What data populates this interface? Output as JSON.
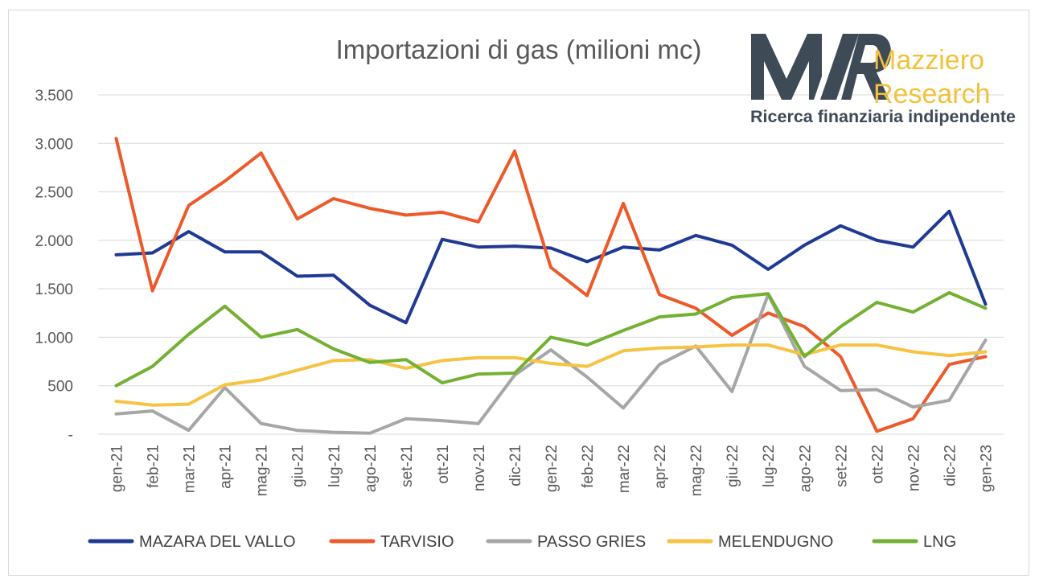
{
  "chart_data": {
    "type": "line",
    "title": "Importazioni di gas (milioni mc)",
    "xlabel": "",
    "ylabel": "",
    "ylim": [
      0,
      3500
    ],
    "y_ticks": [
      {
        "value": 0,
        "label": "-"
      },
      {
        "value": 500,
        "label": "500"
      },
      {
        "value": 1000,
        "label": "1.000"
      },
      {
        "value": 1500,
        "label": "1.500"
      },
      {
        "value": 2000,
        "label": "2.000"
      },
      {
        "value": 2500,
        "label": "2.500"
      },
      {
        "value": 3000,
        "label": "3.000"
      },
      {
        "value": 3500,
        "label": "3.500"
      }
    ],
    "grid": true,
    "legend_position": "bottom",
    "categories": [
      "gen-21",
      "feb-21",
      "mar-21",
      "apr-21",
      "mag-21",
      "giu-21",
      "lug-21",
      "ago-21",
      "set-21",
      "ott-21",
      "nov-21",
      "dic-21",
      "gen-22",
      "feb-22",
      "mar-22",
      "apr-22",
      "mag-22",
      "giu-22",
      "lug-22",
      "ago-22",
      "set-22",
      "ott-22",
      "nov-22",
      "dic-22",
      "gen-23"
    ],
    "series": [
      {
        "name": "MAZARA DEL VALLO",
        "color": "#1f3a93",
        "values": [
          1850,
          1870,
          2090,
          1880,
          1880,
          1630,
          1640,
          1330,
          1150,
          2010,
          1930,
          1940,
          1920,
          1780,
          1930,
          1900,
          2050,
          1950,
          1700,
          1950,
          2150,
          2000,
          1930,
          2300,
          1340
        ]
      },
      {
        "name": "TARVISIO",
        "color": "#ed5a2a",
        "values": [
          3050,
          1480,
          2360,
          2610,
          2900,
          2220,
          2430,
          2330,
          2260,
          2290,
          2190,
          2920,
          1720,
          1430,
          2380,
          1440,
          1300,
          1020,
          1250,
          1110,
          800,
          30,
          160,
          720,
          800
        ]
      },
      {
        "name": "PASSO GRIES",
        "color": "#a6a6a6",
        "values": [
          210,
          240,
          40,
          480,
          110,
          40,
          20,
          10,
          160,
          140,
          110,
          610,
          870,
          590,
          270,
          720,
          910,
          440,
          1440,
          700,
          450,
          460,
          280,
          350,
          970
        ]
      },
      {
        "name": "MELENDUGNO",
        "color": "#f6c342",
        "values": [
          340,
          300,
          310,
          510,
          560,
          660,
          760,
          770,
          680,
          760,
          790,
          790,
          730,
          700,
          860,
          890,
          900,
          920,
          920,
          820,
          920,
          920,
          850,
          810,
          850
        ]
      },
      {
        "name": "LNG",
        "color": "#73b132",
        "values": [
          500,
          700,
          1030,
          1320,
          1000,
          1080,
          880,
          740,
          770,
          530,
          620,
          630,
          1000,
          920,
          1070,
          1210,
          1240,
          1410,
          1450,
          800,
          1110,
          1360,
          1260,
          1460,
          1300
        ]
      }
    ]
  },
  "logo": {
    "monogram": "MR",
    "brand_line1": "Mazziero",
    "brand_line2": "Research",
    "tagline": "Ricerca finanziaria indipendente",
    "colors": {
      "dark": "#3f4a57",
      "gold": "#f3c13a"
    }
  }
}
